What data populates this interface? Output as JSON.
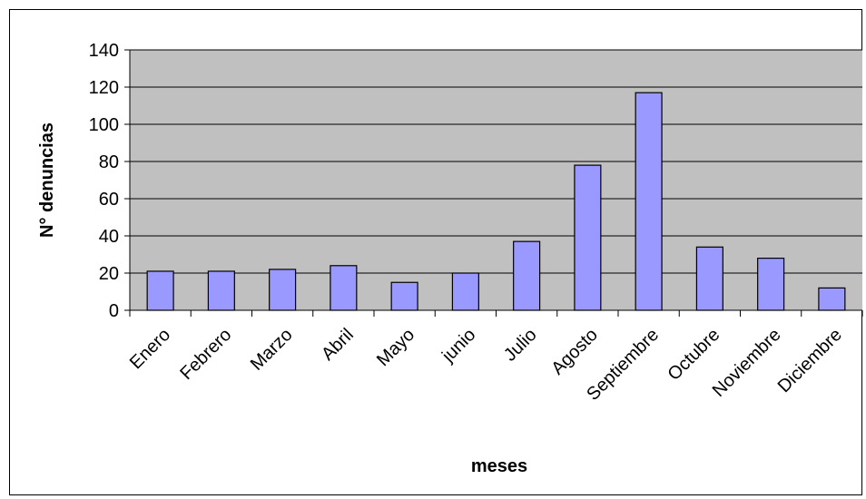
{
  "chart_data": {
    "type": "bar",
    "title": "",
    "xlabel": "meses",
    "ylabel": "N° denuncias",
    "categories": [
      "Enero",
      "Febrero",
      "Marzo",
      "Abril",
      "Mayo",
      "junio",
      "Julio",
      "Agosto",
      "Septiembre",
      "Octubre",
      "Noviembre",
      "Diciembre"
    ],
    "values": [
      21,
      21,
      22,
      24,
      15,
      20,
      37,
      78,
      117,
      34,
      28,
      12
    ],
    "ylim": [
      0,
      140
    ],
    "yticks": [
      "0",
      "20",
      "40",
      "60",
      "80",
      "100",
      "120",
      "140"
    ],
    "grid": true,
    "legend": "none",
    "colors": {
      "bar_fill": "#9999ff",
      "plot_background": "#c0c0c0",
      "gridline": "#000000",
      "bar_stroke": "#000000"
    }
  }
}
